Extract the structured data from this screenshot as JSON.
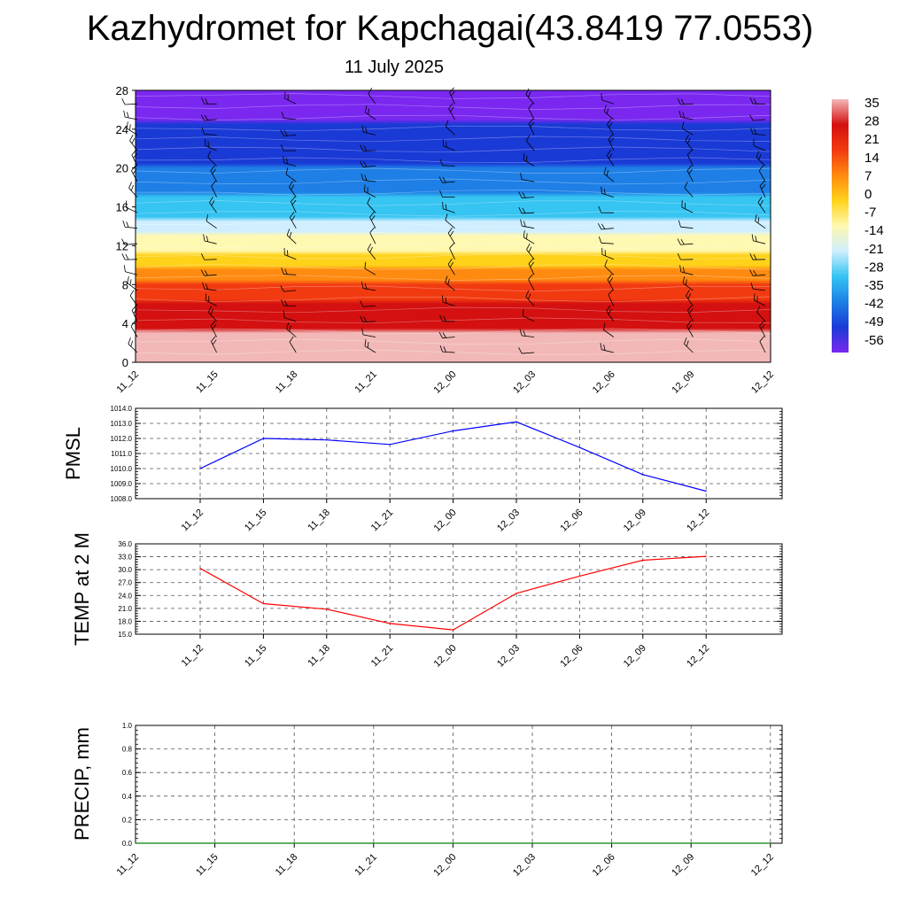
{
  "header": {
    "title": "Kazhydromet for Kapchagai(43.8419 77.0553)",
    "subtitle": "11 July 2025"
  },
  "chart_data": [
    {
      "type": "heatmap",
      "title": "Kazhydromet for Kapchagai(43.8419 77.0553)",
      "subtitle": "11 July 2025",
      "x_categories": [
        "11_12",
        "11_15",
        "11_18",
        "11_21",
        "12_00",
        "12_03",
        "12_06",
        "12_09",
        "12_12"
      ],
      "y_ticks": [
        0,
        4,
        8,
        12,
        16,
        20,
        24,
        28
      ],
      "ylim": [
        0,
        28
      ],
      "colorbar": {
        "labels": [
          35,
          28,
          21,
          14,
          7,
          0,
          -7,
          -14,
          -21,
          -28,
          -35,
          -42,
          -49,
          -56
        ],
        "colors": [
          "#f2b8b8",
          "#d41010",
          "#f23a10",
          "#ff8a10",
          "#ffd21a",
          "#fff8b0",
          "#cfeeff",
          "#36c4f2",
          "#1e7fe6",
          "#1a3ad6",
          "#7a28f0"
        ]
      },
      "temperature_profile": [
        {
          "level": 0,
          "temp": 32
        },
        {
          "level": 4,
          "temp": 30
        },
        {
          "level": 8,
          "temp": 15
        },
        {
          "level": 12.5,
          "temp": -12
        },
        {
          "level": 16,
          "temp": -30
        },
        {
          "level": 20,
          "temp": -42
        },
        {
          "level": 24,
          "temp": -50
        },
        {
          "level": 28,
          "temp": -58
        }
      ],
      "wind_barbs": true
    },
    {
      "type": "line",
      "ylabel": "PMSL",
      "x": [
        "11_12",
        "11_15",
        "11_18",
        "11_21",
        "12_00",
        "12_03",
        "12_06",
        "12_09",
        "12_12"
      ],
      "y_ticks": [
        "1008.0",
        "1009.0",
        "1010.0",
        "1011.0",
        "1012.0",
        "1013.0",
        "1014.0"
      ],
      "ylim": [
        1008.0,
        1014.0
      ],
      "series": [
        {
          "values": [
            1010.0,
            1012.0,
            1011.9,
            1011.6,
            1012.5,
            1013.1,
            1011.4,
            1009.6,
            1008.5
          ],
          "color": "#0000ff"
        }
      ],
      "grid": true
    },
    {
      "type": "line",
      "ylabel": "TEMP at 2 M",
      "x": [
        "11_12",
        "11_15",
        "11_18",
        "11_21",
        "12_00",
        "12_03",
        "12_06",
        "12_09",
        "12_12"
      ],
      "y_ticks": [
        "15.0",
        "18.0",
        "21.0",
        "24.0",
        "27.0",
        "30.0",
        "33.0",
        "36.0"
      ],
      "ylim": [
        15.0,
        36.0
      ],
      "series": [
        {
          "values": [
            30.3,
            22.1,
            20.8,
            17.5,
            16.0,
            24.5,
            28.5,
            32.2,
            33.1
          ],
          "color": "#ff0000"
        }
      ],
      "grid": true
    },
    {
      "type": "line",
      "ylabel": "PRECIP, mm",
      "x": [
        "11_12",
        "11_15",
        "11_18",
        "11_21",
        "12_00",
        "12_03",
        "12_06",
        "12_09",
        "12_12"
      ],
      "y_ticks": [
        "0.0",
        "0.2",
        "0.4",
        "0.6",
        "0.8",
        "1.0"
      ],
      "ylim": [
        0.0,
        1.0
      ],
      "series": [
        {
          "values": [
            0,
            0,
            0,
            0,
            0,
            0,
            0,
            0,
            0
          ],
          "color": "#008000"
        }
      ],
      "grid": true
    }
  ]
}
